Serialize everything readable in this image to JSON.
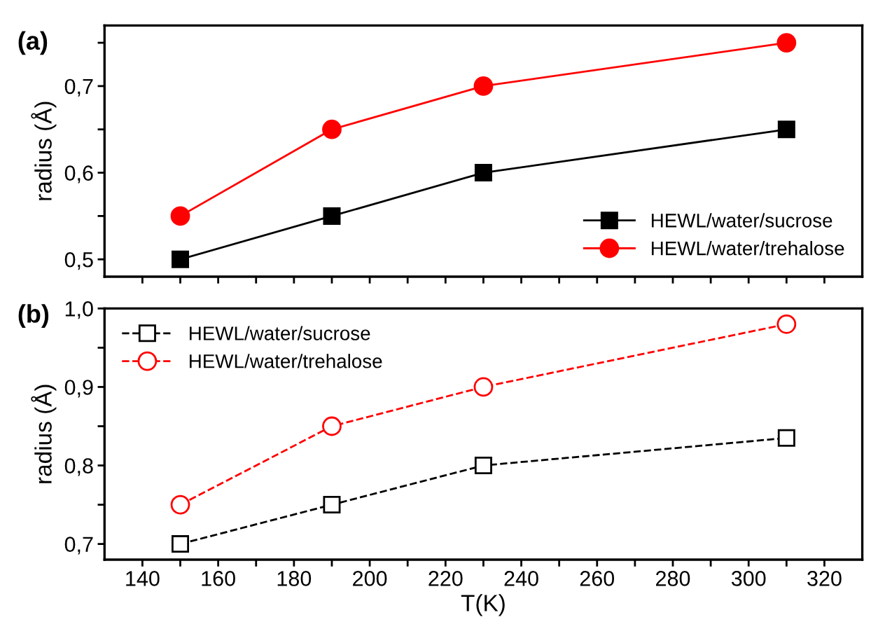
{
  "chart_data": [
    {
      "type": "line",
      "title": "(a)",
      "ylabel": "radius (Å)",
      "x": [
        150,
        190,
        230,
        310
      ],
      "xlim": [
        130,
        330
      ],
      "xticks": [
        {
          "value": 140,
          "label": null
        },
        {
          "value": 150,
          "label": null
        },
        {
          "value": 160,
          "label": null
        },
        {
          "value": 170,
          "label": null
        },
        {
          "value": 180,
          "label": null
        },
        {
          "value": 190,
          "label": null
        },
        {
          "value": 200,
          "label": null
        },
        {
          "value": 210,
          "label": null
        },
        {
          "value": 220,
          "label": null
        },
        {
          "value": 230,
          "label": null
        },
        {
          "value": 240,
          "label": null
        },
        {
          "value": 250,
          "label": null
        },
        {
          "value": 260,
          "label": null
        },
        {
          "value": 270,
          "label": null
        },
        {
          "value": 280,
          "label": null
        },
        {
          "value": 290,
          "label": null
        },
        {
          "value": 300,
          "label": null
        },
        {
          "value": 310,
          "label": null
        },
        {
          "value": 320,
          "label": null
        }
      ],
      "ylim": [
        0.48,
        0.77
      ],
      "yticks": [
        {
          "value": 0.5,
          "label": "0,5"
        },
        {
          "value": 0.55,
          "label": null
        },
        {
          "value": 0.6,
          "label": "0,6"
        },
        {
          "value": 0.65,
          "label": null
        },
        {
          "value": 0.7,
          "label": "0,7"
        },
        {
          "value": 0.75,
          "label": null
        }
      ],
      "tick_labels": "y",
      "legend": "bottom right",
      "line_style": "solid",
      "grid": false,
      "series": [
        {
          "name": "HEWL/water/sucrose",
          "color": "#000000",
          "marker": "square",
          "values": [
            0.5,
            0.55,
            0.6,
            0.65
          ]
        },
        {
          "name": "HEWL/water/trehalose",
          "color": "#ff0000",
          "marker": "circle",
          "values": [
            0.55,
            0.65,
            0.7,
            0.75
          ]
        }
      ]
    },
    {
      "type": "line",
      "title": "(b)",
      "ylabel": "radius (Å)",
      "xlabel": "T(K)",
      "x": [
        150,
        190,
        230,
        310
      ],
      "xlim": [
        130,
        330
      ],
      "xticks": [
        140,
        {
          "value": 150,
          "label": null
        },
        160,
        {
          "value": 170,
          "label": null
        },
        180,
        {
          "value": 190,
          "label": null
        },
        200,
        {
          "value": 210,
          "label": null
        },
        220,
        {
          "value": 230,
          "label": null
        },
        240,
        {
          "value": 250,
          "label": null
        },
        260,
        {
          "value": 270,
          "label": null
        },
        280,
        {
          "value": 290,
          "label": null
        },
        300,
        {
          "value": 310,
          "label": null
        },
        320
      ],
      "ylim": [
        0.68,
        1.0
      ],
      "yticks": [
        {
          "value": 0.7,
          "label": "0,7"
        },
        {
          "value": 0.75,
          "label": null
        },
        {
          "value": 0.8,
          "label": "0,8"
        },
        {
          "value": 0.85,
          "label": null
        },
        {
          "value": 0.9,
          "label": "0,9"
        },
        {
          "value": 0.95,
          "label": null
        },
        {
          "value": 1.0,
          "label": "1,0"
        }
      ],
      "legend": "top left",
      "line_style": "dashed",
      "grid": false,
      "series": [
        {
          "name": "HEWL/water/sucrose",
          "color": "#000000",
          "marker": "square",
          "values": [
            0.7,
            0.75,
            0.8,
            0.835
          ]
        },
        {
          "name": "HEWL/water/trehalose",
          "color": "#ff0000",
          "marker": "circle",
          "values": [
            0.75,
            0.85,
            0.9,
            0.98
          ]
        }
      ]
    }
  ]
}
